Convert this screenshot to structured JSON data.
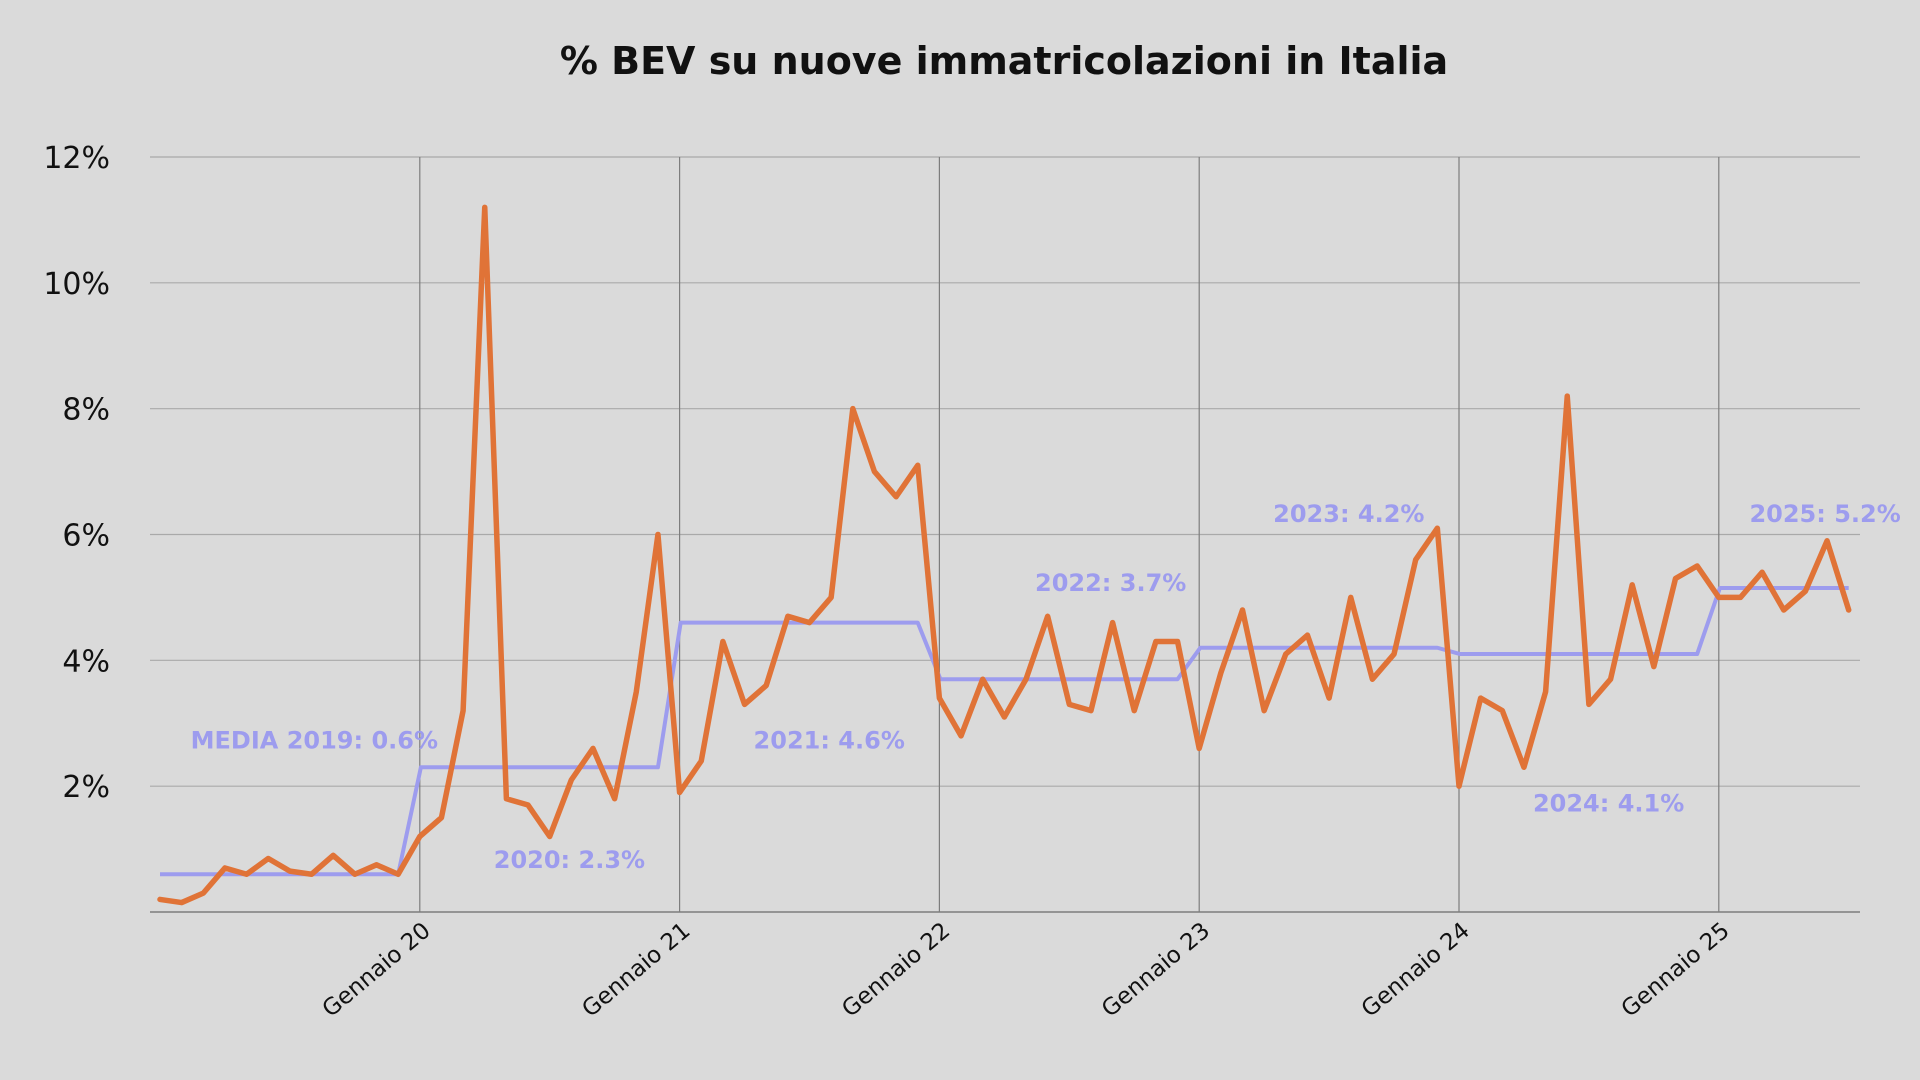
{
  "colors": {
    "background": "#dadada",
    "grid": "#a9a9a9",
    "vgrid": "#7d7d7d",
    "bev_line": "#e07337",
    "avg_line": "#9d9cee",
    "text": "#111111"
  },
  "chart_data": {
    "type": "line",
    "title": "% BEV su nuove immatricolazioni in Italia",
    "xlabel": "",
    "ylabel": "",
    "x_start": "2019-01",
    "ylim": [
      0,
      12
    ],
    "yticks": [
      {
        "value": 2,
        "label": "2%"
      },
      {
        "value": 4,
        "label": "4%"
      },
      {
        "value": 6,
        "label": "6%"
      },
      {
        "value": 8,
        "label": "8%"
      },
      {
        "value": 10,
        "label": "10%"
      },
      {
        "value": 12,
        "label": "12%"
      }
    ],
    "xticks": [
      {
        "date": "2020-01",
        "label": "Gennaio 20"
      },
      {
        "date": "2021-01",
        "label": "Gennaio 21"
      },
      {
        "date": "2022-01",
        "label": "Gennaio 22"
      },
      {
        "date": "2023-01",
        "label": "Gennaio 23"
      },
      {
        "date": "2024-01",
        "label": "Gennaio 24"
      },
      {
        "date": "2025-01",
        "label": "Gennaio 25"
      }
    ],
    "grid": true,
    "series": [
      {
        "name": "",
        "color": "#e07337",
        "values": [
          0.2,
          0.15,
          0.3,
          0.7,
          0.6,
          0.85,
          0.65,
          0.6,
          0.9,
          0.6,
          0.75,
          0.6,
          1.2,
          1.5,
          3.2,
          11.2,
          1.8,
          1.7,
          1.2,
          2.1,
          2.6,
          1.8,
          3.5,
          6.0,
          1.9,
          2.4,
          4.3,
          3.3,
          3.6,
          4.7,
          4.6,
          5.0,
          8.0,
          7.0,
          6.6,
          7.1,
          3.4,
          2.8,
          3.7,
          3.1,
          3.7,
          4.7,
          3.3,
          3.2,
          4.6,
          3.2,
          4.3,
          4.3,
          2.6,
          3.8,
          4.8,
          3.2,
          4.1,
          4.4,
          3.4,
          5.0,
          3.7,
          4.1,
          5.6,
          6.1,
          2.0,
          3.4,
          3.2,
          2.3,
          3.5,
          8.2,
          3.3,
          3.7,
          5.2,
          3.9,
          5.3,
          5.5,
          5.0,
          5.0,
          5.4,
          4.8,
          5.1,
          5.9,
          4.8
        ]
      },
      {
        "name": "",
        "color": "#9d9cee",
        "step_values": [
          {
            "year": 2019,
            "value": 0.6
          },
          {
            "year": 2020,
            "value": 2.3
          },
          {
            "year": 2021,
            "value": 4.6
          },
          {
            "year": 2022,
            "value": 3.7
          },
          {
            "year": 2023,
            "value": 4.2
          },
          {
            "year": 2024,
            "value": 4.1
          },
          {
            "year": 2025,
            "value": 5.15
          }
        ]
      }
    ],
    "annotations": [
      {
        "text": "MEDIA 2019: 0.6%",
        "anchor_date": "2019-02",
        "anchor_value": 2.6
      },
      {
        "text": "2020: 2.3%",
        "anchor_date": "2020-04",
        "anchor_value": 0.7
      },
      {
        "text": "2021: 4.6%",
        "anchor_date": "2021-04",
        "anchor_value": 2.6
      },
      {
        "text": "2022: 3.7%",
        "anchor_date": "2022-05",
        "anchor_value": 5.1
      },
      {
        "text": "2023: 4.2%",
        "anchor_date": "2023-04",
        "anchor_value": 6.2
      },
      {
        "text": "2024: 4.1%",
        "anchor_date": "2024-04",
        "anchor_value": 1.6
      },
      {
        "text": "2025: 5.2%",
        "anchor_date": "2025-02",
        "anchor_value": 6.2
      }
    ]
  }
}
